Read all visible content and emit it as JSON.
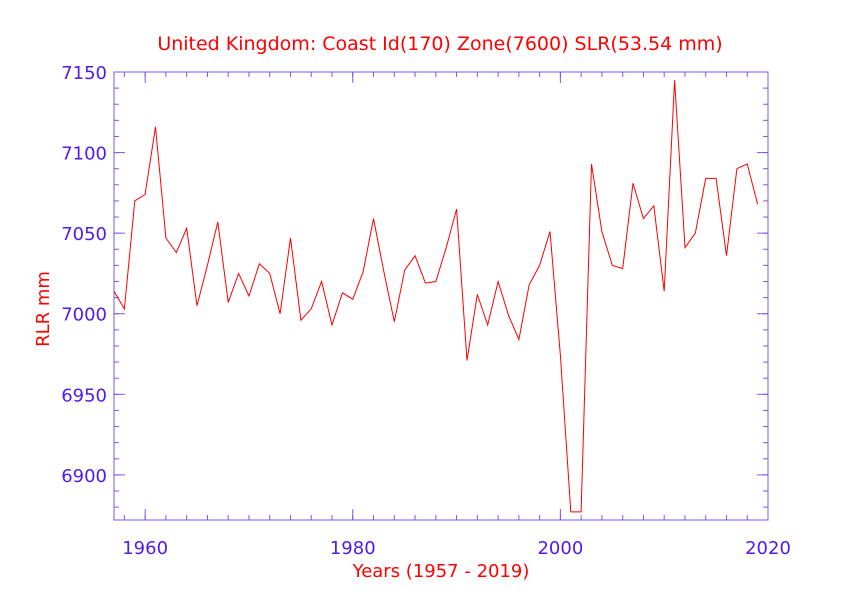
{
  "chart_data": {
    "type": "line",
    "title": "United Kingdom:  Coast Id(170) Zone(7600) SLR(53.54 mm)",
    "xlabel": "Years (1957 - 2019)",
    "ylabel": "RLR mm",
    "xlim": [
      1957,
      2020
    ],
    "ylim": [
      6872,
      7150
    ],
    "x_ticks": [
      1960,
      1980,
      2000,
      2020
    ],
    "x_tick_labels": [
      "1960",
      "1980",
      "2000",
      "2020"
    ],
    "y_ticks": [
      6900,
      6950,
      7000,
      7050,
      7100,
      7150
    ],
    "y_tick_labels": [
      "6900",
      "6950",
      "7000",
      "7050",
      "7100",
      "7150"
    ],
    "x_minor_step": 2,
    "y_minor_step": 10,
    "colors": {
      "line": "#ff0000",
      "title": "#ff0000",
      "axis_text": "#4f1bf0",
      "frame": "#7b55f0"
    },
    "series": [
      {
        "name": "RLR",
        "x": [
          1957,
          1958,
          1959,
          1960,
          1961,
          1962,
          1963,
          1964,
          1965,
          1966,
          1967,
          1968,
          1969,
          1970,
          1971,
          1972,
          1973,
          1974,
          1975,
          1976,
          1977,
          1978,
          1979,
          1980,
          1981,
          1982,
          1983,
          1984,
          1985,
          1986,
          1987,
          1988,
          1989,
          1990,
          1991,
          1992,
          1993,
          1994,
          1995,
          1996,
          1997,
          1998,
          1999,
          2000,
          2001,
          2002,
          2003,
          2004,
          2005,
          2006,
          2007,
          2008,
          2009,
          2010,
          2011,
          2012,
          2013,
          2014,
          2015,
          2016,
          2017,
          2018,
          2019
        ],
        "values": [
          7014,
          7003,
          7070,
          7074,
          7116,
          7047,
          7038,
          7053,
          7005,
          7030,
          7057,
          7007,
          7025,
          7011,
          7031,
          7025,
          7000,
          7047,
          6996,
          7003,
          7020,
          6993,
          7013,
          7009,
          7026,
          7059,
          7026,
          6995,
          7027,
          7036,
          7019,
          7020,
          7041,
          7065,
          6971,
          7012,
          6993,
          7020,
          6999,
          6984,
          7018,
          7030,
          7051,
          6974,
          6877,
          6877,
          7093,
          7051,
          7030,
          7028,
          7081,
          7059,
          7067,
          7014,
          7145,
          7041,
          7050,
          7084,
          7084,
          7036,
          7090,
          7093,
          7068
        ]
      }
    ]
  }
}
